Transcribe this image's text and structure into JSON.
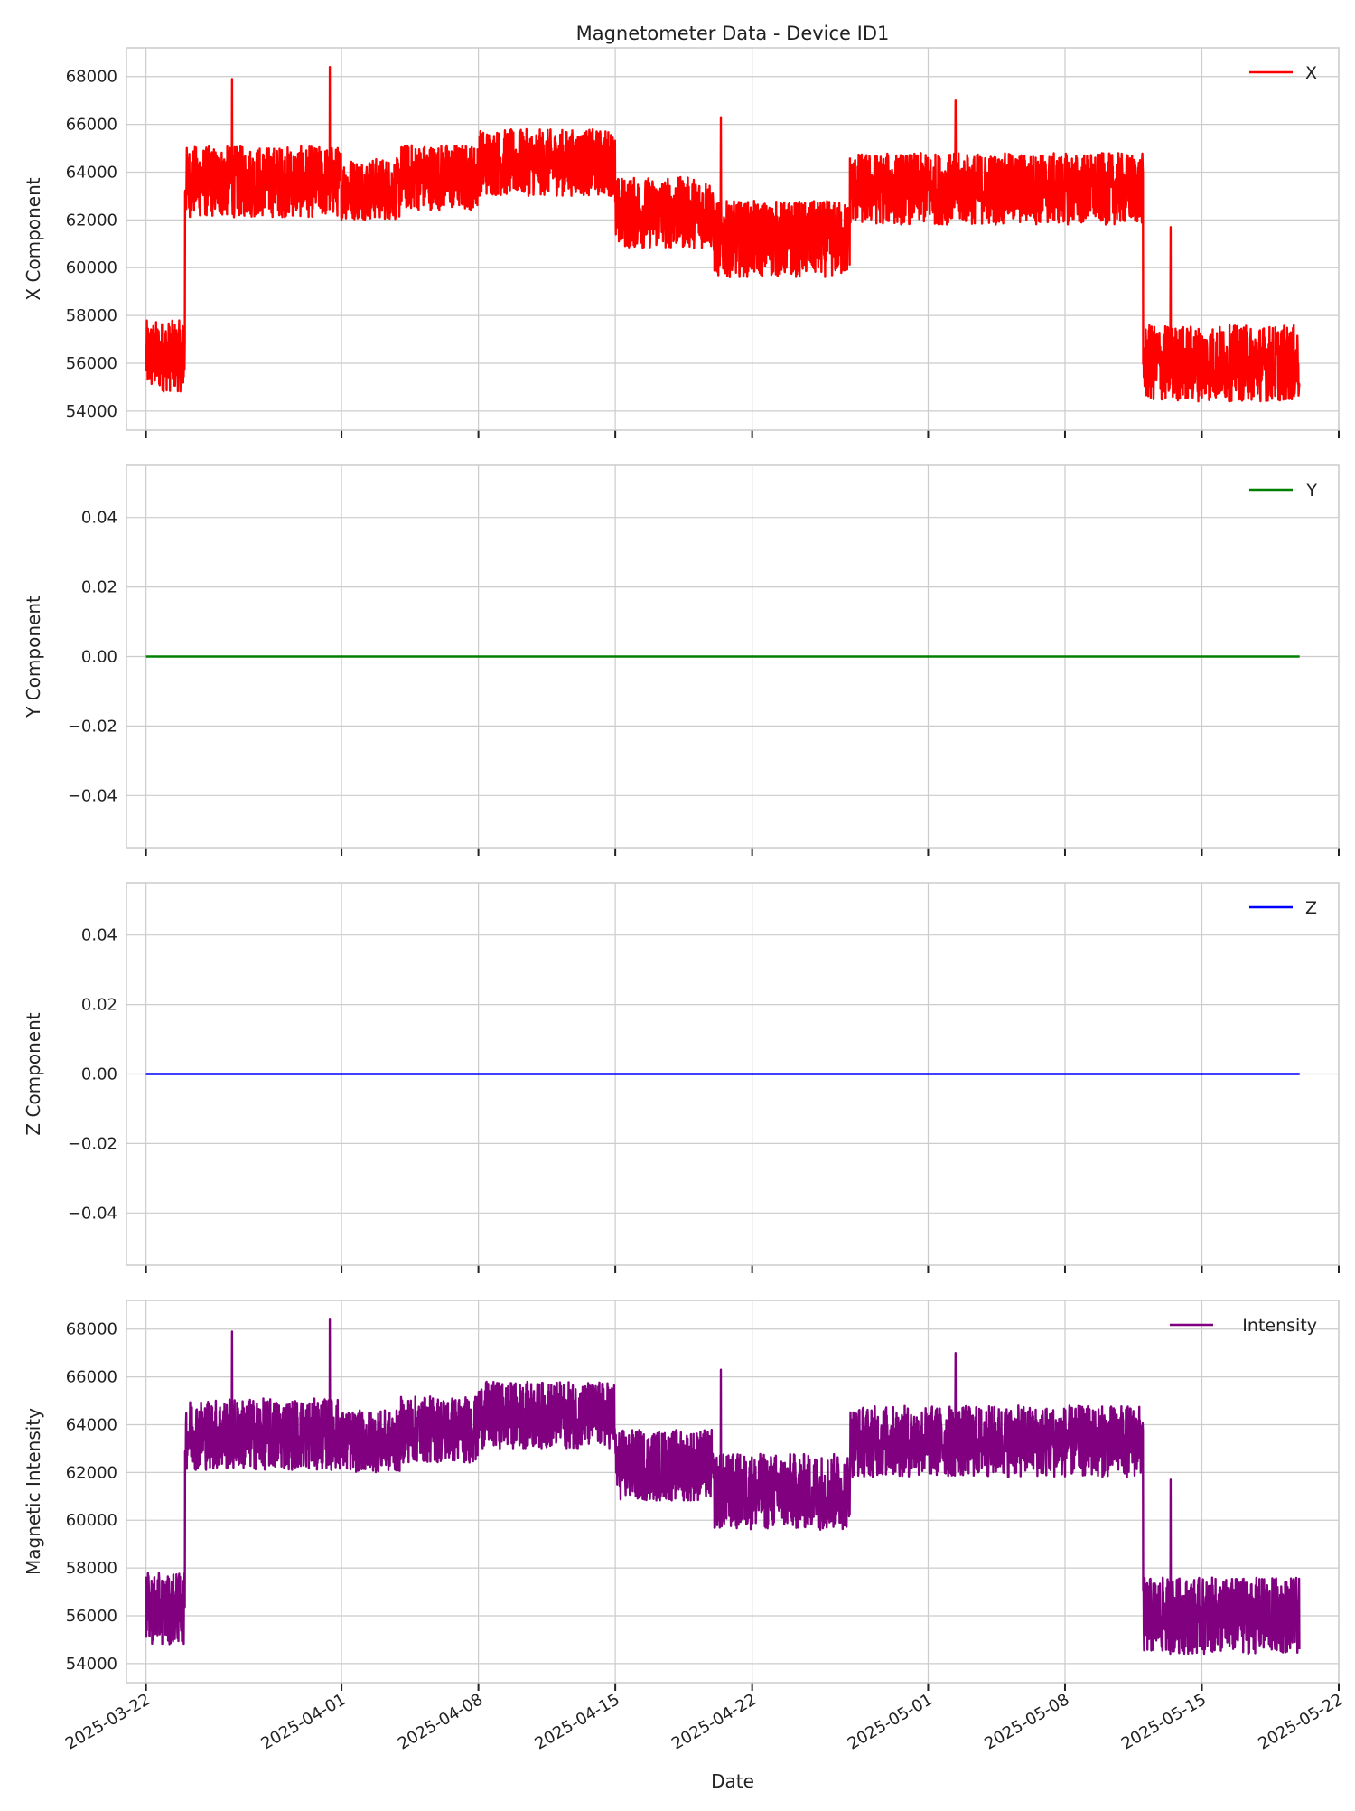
{
  "chart_data": {
    "type": "line",
    "title": "Magnetometer Data - Device ID1",
    "xlabel": "Date",
    "xlim": [
      "2025-03-21",
      "2025-05-22"
    ],
    "x_ticks": [
      "2025-03-22",
      "2025-04-01",
      "2025-04-08",
      "2025-04-15",
      "2025-04-22",
      "2025-05-01",
      "2025-05-08",
      "2025-05-15",
      "2025-05-22"
    ],
    "grid": true,
    "legend_position": "upper-right",
    "subplots": [
      {
        "ylabel": "X Component",
        "ylim": [
          53200,
          69200
        ],
        "y_ticks": [
          "54000",
          "56000",
          "58000",
          "60000",
          "62000",
          "64000",
          "66000",
          "68000"
        ],
        "series": [
          {
            "name": "X",
            "color": "#ff0000",
            "segments": [
              {
                "start": "2025-03-22",
                "end": "2025-03-24",
                "center": 56300,
                "amp": 1500
              },
              {
                "start": "2025-03-24",
                "end": "2025-04-01",
                "center": 63600,
                "amp": 1500
              },
              {
                "start": "2025-04-01",
                "end": "2025-04-04",
                "center": 63300,
                "amp": 1300
              },
              {
                "start": "2025-04-04",
                "end": "2025-04-08",
                "center": 63800,
                "amp": 1400
              },
              {
                "start": "2025-04-08",
                "end": "2025-04-15",
                "center": 64400,
                "amp": 1400
              },
              {
                "start": "2025-04-15",
                "end": "2025-04-20",
                "center": 62300,
                "amp": 1500
              },
              {
                "start": "2025-04-20",
                "end": "2025-04-27",
                "center": 61200,
                "amp": 1600
              },
              {
                "start": "2025-04-27",
                "end": "2025-05-12",
                "center": 63300,
                "amp": 1500
              },
              {
                "start": "2025-05-12",
                "end": "2025-05-20",
                "center": 56000,
                "amp": 1600
              }
            ],
            "spikes": [
              {
                "date": "2025-03-26",
                "value": 67900
              },
              {
                "date": "2025-03-31",
                "value": 68400
              },
              {
                "date": "2025-04-20",
                "value": 66300
              },
              {
                "date": "2025-05-02",
                "value": 67000
              },
              {
                "date": "2025-05-13",
                "value": 61700
              }
            ]
          }
        ]
      },
      {
        "ylabel": "Y Component",
        "ylim": [
          -0.055,
          0.055
        ],
        "y_ticks": [
          "−0.04",
          "−0.02",
          "0.00",
          "0.02",
          "0.04"
        ],
        "series": [
          {
            "name": "Y",
            "color": "#008000",
            "constant": 0,
            "start": "2025-03-22",
            "end": "2025-05-20"
          }
        ]
      },
      {
        "ylabel": "Z Component",
        "ylim": [
          -0.055,
          0.055
        ],
        "y_ticks": [
          "−0.04",
          "−0.02",
          "0.00",
          "0.02",
          "0.04"
        ],
        "series": [
          {
            "name": "Z",
            "color": "#0000ff",
            "constant": 0,
            "start": "2025-03-22",
            "end": "2025-05-20"
          }
        ]
      },
      {
        "ylabel": "Magnetic Intensity",
        "ylim": [
          53200,
          69200
        ],
        "y_ticks": [
          "54000",
          "56000",
          "58000",
          "60000",
          "62000",
          "64000",
          "66000",
          "68000"
        ],
        "series": [
          {
            "name": "Intensity",
            "color": "#800080",
            "segments": [
              {
                "start": "2025-03-22",
                "end": "2025-03-24",
                "center": 56300,
                "amp": 1500
              },
              {
                "start": "2025-03-24",
                "end": "2025-04-01",
                "center": 63600,
                "amp": 1500
              },
              {
                "start": "2025-04-01",
                "end": "2025-04-04",
                "center": 63300,
                "amp": 1300
              },
              {
                "start": "2025-04-04",
                "end": "2025-04-08",
                "center": 63800,
                "amp": 1400
              },
              {
                "start": "2025-04-08",
                "end": "2025-04-15",
                "center": 64400,
                "amp": 1400
              },
              {
                "start": "2025-04-15",
                "end": "2025-04-20",
                "center": 62300,
                "amp": 1500
              },
              {
                "start": "2025-04-20",
                "end": "2025-04-27",
                "center": 61200,
                "amp": 1600
              },
              {
                "start": "2025-04-27",
                "end": "2025-05-12",
                "center": 63300,
                "amp": 1500
              },
              {
                "start": "2025-05-12",
                "end": "2025-05-20",
                "center": 56000,
                "amp": 1600
              }
            ],
            "spikes": [
              {
                "date": "2025-03-26",
                "value": 67900
              },
              {
                "date": "2025-03-31",
                "value": 68400
              },
              {
                "date": "2025-04-20",
                "value": 66300
              },
              {
                "date": "2025-05-02",
                "value": 67000
              },
              {
                "date": "2025-05-13",
                "value": 61700
              }
            ]
          }
        ]
      }
    ]
  }
}
